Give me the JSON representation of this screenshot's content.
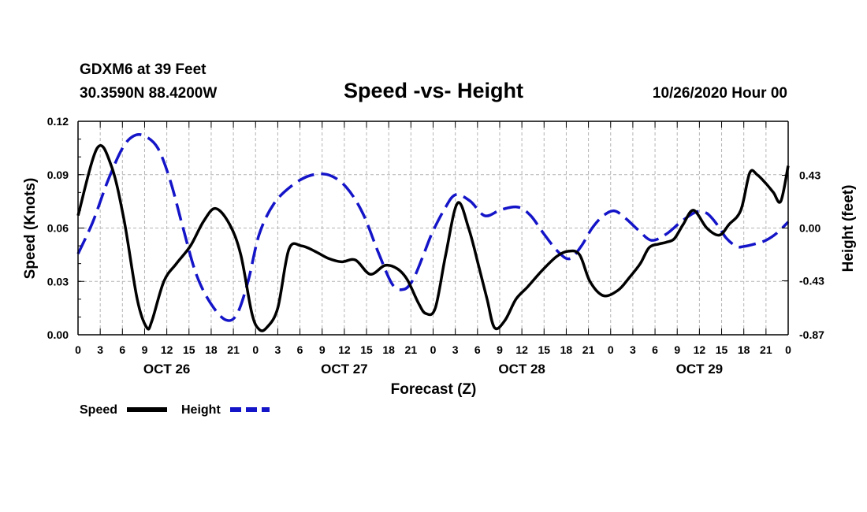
{
  "header": {
    "station": "GDXM6 at 39 Feet",
    "coords": "30.3590N 88.4200W",
    "title": "Speed -vs- Height",
    "date": "10/26/2020 Hour 00"
  },
  "chart_data": {
    "type": "line",
    "title": "Speed -vs- Height",
    "xlabel": "Forecast (Z)",
    "ylabel": "Speed (Knots)",
    "y2label": "Height (feet)",
    "xlim": [
      0,
      96
    ],
    "ylim": [
      0,
      0.12
    ],
    "y2lim": [
      -0.87,
      0.87
    ],
    "grid": true,
    "x_tick_hours": [
      0,
      3,
      6,
      9,
      12,
      15,
      18,
      21,
      24,
      27,
      30,
      33,
      36,
      39,
      42,
      45,
      48,
      51,
      54,
      57,
      60,
      63,
      66,
      69,
      72,
      75,
      78,
      81,
      84,
      87,
      90,
      93,
      96
    ],
    "x_tick_labels": [
      "0",
      "3",
      "6",
      "9",
      "12",
      "15",
      "18",
      "21",
      "0",
      "3",
      "6",
      "9",
      "12",
      "15",
      "18",
      "21",
      "0",
      "3",
      "6",
      "9",
      "12",
      "15",
      "18",
      "21",
      "0",
      "3",
      "6",
      "9",
      "12",
      "15",
      "18",
      "21",
      "0"
    ],
    "y_ticks": [
      0,
      0.03,
      0.06,
      0.09,
      0.12
    ],
    "y_tick_labels": [
      "0.00",
      "0.03",
      "0.06",
      "0.09",
      "0.12"
    ],
    "y2_ticks": [
      -0.87,
      -0.43,
      0,
      0.43
    ],
    "y2_tick_labels": [
      "-0.87",
      "-0.43",
      "0.00",
      "0.43"
    ],
    "day_labels": [
      {
        "label": "OCT 26",
        "hour": 12
      },
      {
        "label": "OCT 27",
        "hour": 36
      },
      {
        "label": "OCT 28",
        "hour": 60
      },
      {
        "label": "OCT 29",
        "hour": 84
      }
    ],
    "series": [
      {
        "name": "Speed",
        "axis": "left",
        "color": "#000000",
        "dashed": false,
        "x": [
          0,
          2.6,
          4.5,
          6.2,
          8,
          9.3,
          10,
          11.6,
          13.3,
          15.2,
          17,
          18.6,
          20.5,
          22,
          23.5,
          24.5,
          25.5,
          27,
          28.5,
          30.2,
          32,
          33.8,
          35.6,
          37.5,
          39.5,
          41.5,
          43.2,
          44.5,
          46,
          47,
          48.3,
          49.7,
          51.3,
          52.8,
          54.2,
          55.3,
          56.3,
          57.7,
          59.2,
          60.8,
          62.7,
          64.7,
          66.3,
          67.8,
          69.2,
          71,
          73,
          74.5,
          76,
          77.2,
          78.5,
          79.5,
          80.6,
          81.8,
          83.2,
          85,
          86.7,
          88,
          89.6,
          90.8,
          91.8,
          93,
          94,
          95,
          96
        ],
        "y": [
          0.067,
          0.105,
          0.095,
          0.065,
          0.02,
          0.004,
          0.008,
          0.03,
          0.04,
          0.05,
          0.064,
          0.071,
          0.062,
          0.045,
          0.012,
          0.003,
          0.004,
          0.015,
          0.048,
          0.05,
          0.047,
          0.043,
          0.041,
          0.042,
          0.034,
          0.039,
          0.037,
          0.031,
          0.018,
          0.012,
          0.015,
          0.045,
          0.074,
          0.06,
          0.038,
          0.02,
          0.004,
          0.008,
          0.02,
          0.027,
          0.036,
          0.044,
          0.047,
          0.045,
          0.03,
          0.022,
          0.025,
          0.032,
          0.04,
          0.049,
          0.051,
          0.052,
          0.054,
          0.062,
          0.07,
          0.06,
          0.056,
          0.062,
          0.07,
          0.091,
          0.09,
          0.085,
          0.08,
          0.075,
          0.095
        ]
      },
      {
        "name": "Height",
        "axis": "right",
        "color": "#1414c8",
        "dashed": true,
        "x": [
          0,
          2,
          4,
          6,
          7.5,
          9,
          10.8,
          12.5,
          14.2,
          16,
          18,
          20,
          21.5,
          23,
          24.5,
          26.5,
          29,
          31.5,
          34,
          36.3,
          38.5,
          40.6,
          42.5,
          44,
          45.2,
          46.5,
          47.8,
          49.5,
          51,
          53,
          55,
          57.2,
          59.5,
          61.2,
          63,
          65,
          66.5,
          68,
          69.5,
          71,
          72.5,
          74,
          75.8,
          77.5,
          79.5,
          81.5,
          83.5,
          85,
          86.5,
          87.6,
          89,
          90,
          91.5,
          93,
          94.5,
          96
        ],
        "y": [
          -0.21,
          0.05,
          0.38,
          0.65,
          0.75,
          0.75,
          0.65,
          0.38,
          0.0,
          -0.38,
          -0.62,
          -0.75,
          -0.7,
          -0.43,
          -0.05,
          0.2,
          0.35,
          0.43,
          0.43,
          0.33,
          0.12,
          -0.2,
          -0.46,
          -0.5,
          -0.43,
          -0.25,
          -0.05,
          0.15,
          0.27,
          0.22,
          0.1,
          0.15,
          0.17,
          0.1,
          -0.05,
          -0.2,
          -0.25,
          -0.15,
          0.0,
          0.1,
          0.14,
          0.08,
          -0.02,
          -0.1,
          -0.05,
          0.05,
          0.13,
          0.12,
          0.02,
          -0.08,
          -0.15,
          -0.15,
          -0.13,
          -0.1,
          -0.04,
          0.05
        ]
      }
    ]
  }
}
